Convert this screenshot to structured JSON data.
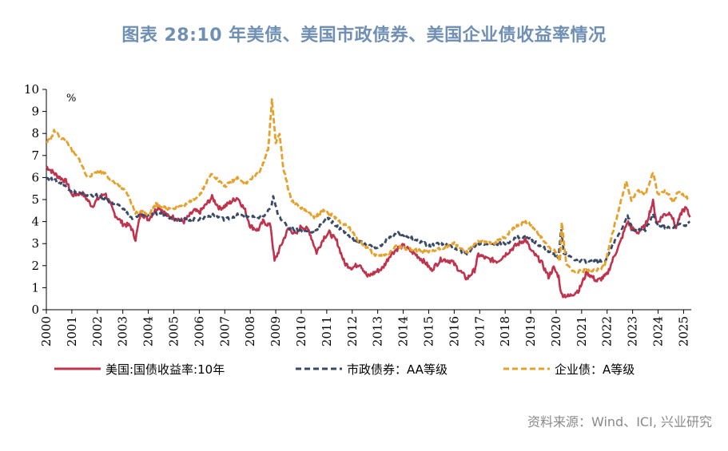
{
  "title": "图表 28:10 年美债、美国市政债券、美国企业债收益率情况",
  "source": "资料来源：Wind、ICI, 兴业研究",
  "chart_data": {
    "type": "line",
    "unit_label": "%",
    "ylim": [
      0,
      10
    ],
    "y_ticks": [
      "0",
      "1",
      "2",
      "3",
      "4",
      "5",
      "6",
      "7",
      "8",
      "9",
      "10"
    ],
    "xlim": [
      2000,
      2025.3
    ],
    "x_ticks": [
      "2000",
      "2001",
      "2002",
      "2003",
      "2004",
      "2005",
      "2006",
      "2007",
      "2008",
      "2009",
      "2010",
      "2011",
      "2012",
      "2013",
      "2014",
      "2015",
      "2016",
      "2017",
      "2018",
      "2019",
      "2020",
      "2021",
      "2022",
      "2023",
      "2024",
      "2025"
    ],
    "grid": false,
    "legend_position": "bottom",
    "series": [
      {
        "name": "美国:国债收益率:10年",
        "color": "#c0334d",
        "dash": "solid",
        "points": [
          [
            2000.0,
            6.5
          ],
          [
            2000.4,
            6.1
          ],
          [
            2000.8,
            5.8
          ],
          [
            2001.0,
            5.2
          ],
          [
            2001.4,
            5.3
          ],
          [
            2001.8,
            4.7
          ],
          [
            2002.0,
            5.0
          ],
          [
            2002.3,
            5.3
          ],
          [
            2002.7,
            4.3
          ],
          [
            2003.0,
            3.9
          ],
          [
            2003.3,
            3.8
          ],
          [
            2003.5,
            3.2
          ],
          [
            2003.7,
            4.4
          ],
          [
            2004.0,
            4.1
          ],
          [
            2004.4,
            4.7
          ],
          [
            2004.8,
            4.2
          ],
          [
            2005.0,
            4.2
          ],
          [
            2005.4,
            4.0
          ],
          [
            2005.8,
            4.5
          ],
          [
            2006.0,
            4.4
          ],
          [
            2006.5,
            5.1
          ],
          [
            2006.8,
            4.6
          ],
          [
            2007.0,
            4.7
          ],
          [
            2007.5,
            5.1
          ],
          [
            2007.8,
            4.5
          ],
          [
            2008.0,
            3.8
          ],
          [
            2008.3,
            3.6
          ],
          [
            2008.5,
            4.0
          ],
          [
            2008.8,
            3.8
          ],
          [
            2008.95,
            2.2
          ],
          [
            2009.2,
            2.9
          ],
          [
            2009.5,
            3.7
          ],
          [
            2009.8,
            3.4
          ],
          [
            2010.0,
            3.8
          ],
          [
            2010.3,
            3.6
          ],
          [
            2010.6,
            2.6
          ],
          [
            2010.9,
            3.3
          ],
          [
            2011.1,
            3.5
          ],
          [
            2011.4,
            3.1
          ],
          [
            2011.7,
            2.1
          ],
          [
            2012.0,
            1.9
          ],
          [
            2012.3,
            2.1
          ],
          [
            2012.6,
            1.5
          ],
          [
            2012.9,
            1.7
          ],
          [
            2013.2,
            1.9
          ],
          [
            2013.5,
            2.5
          ],
          [
            2013.8,
            2.8
          ],
          [
            2014.0,
            2.9
          ],
          [
            2014.5,
            2.5
          ],
          [
            2014.9,
            2.1
          ],
          [
            2015.1,
            1.8
          ],
          [
            2015.5,
            2.3
          ],
          [
            2015.9,
            2.2
          ],
          [
            2016.2,
            1.8
          ],
          [
            2016.5,
            1.4
          ],
          [
            2016.8,
            1.8
          ],
          [
            2016.95,
            2.5
          ],
          [
            2017.3,
            2.3
          ],
          [
            2017.7,
            2.2
          ],
          [
            2018.0,
            2.5
          ],
          [
            2018.4,
            2.9
          ],
          [
            2018.8,
            3.2
          ],
          [
            2019.0,
            2.7
          ],
          [
            2019.4,
            2.2
          ],
          [
            2019.7,
            1.5
          ],
          [
            2019.9,
            1.9
          ],
          [
            2020.1,
            1.5
          ],
          [
            2020.2,
            0.7
          ],
          [
            2020.5,
            0.6
          ],
          [
            2020.9,
            0.9
          ],
          [
            2021.2,
            1.7
          ],
          [
            2021.6,
            1.3
          ],
          [
            2021.9,
            1.5
          ],
          [
            2022.0,
            1.6
          ],
          [
            2022.3,
            2.5
          ],
          [
            2022.5,
            3.0
          ],
          [
            2022.8,
            4.0
          ],
          [
            2022.95,
            3.7
          ],
          [
            2023.2,
            3.5
          ],
          [
            2023.5,
            3.8
          ],
          [
            2023.8,
            4.9
          ],
          [
            2023.95,
            3.9
          ],
          [
            2024.2,
            4.3
          ],
          [
            2024.5,
            4.4
          ],
          [
            2024.7,
            3.7
          ],
          [
            2024.95,
            4.5
          ],
          [
            2025.1,
            4.6
          ],
          [
            2025.25,
            4.2
          ]
        ]
      },
      {
        "name": "市政债券：AA等级",
        "color": "#3a4a66",
        "dash": "dashed",
        "points": [
          [
            2000.0,
            6.0
          ],
          [
            2000.5,
            5.8
          ],
          [
            2001.0,
            5.4
          ],
          [
            2001.5,
            5.2
          ],
          [
            2002.0,
            5.2
          ],
          [
            2002.5,
            4.9
          ],
          [
            2003.0,
            4.6
          ],
          [
            2003.4,
            4.1
          ],
          [
            2003.7,
            4.3
          ],
          [
            2004.0,
            4.3
          ],
          [
            2004.5,
            4.4
          ],
          [
            2005.0,
            4.1
          ],
          [
            2005.5,
            4.1
          ],
          [
            2006.0,
            4.1
          ],
          [
            2006.5,
            4.3
          ],
          [
            2007.0,
            4.1
          ],
          [
            2007.5,
            4.3
          ],
          [
            2008.0,
            4.2
          ],
          [
            2008.5,
            4.2
          ],
          [
            2008.8,
            4.6
          ],
          [
            2008.9,
            5.1
          ],
          [
            2009.1,
            4.3
          ],
          [
            2009.5,
            3.7
          ],
          [
            2010.0,
            3.6
          ],
          [
            2010.5,
            3.5
          ],
          [
            2011.0,
            4.2
          ],
          [
            2011.5,
            3.7
          ],
          [
            2012.0,
            3.2
          ],
          [
            2012.5,
            3.0
          ],
          [
            2013.0,
            2.8
          ],
          [
            2013.5,
            3.3
          ],
          [
            2013.8,
            3.5
          ],
          [
            2014.0,
            3.4
          ],
          [
            2014.5,
            3.2
          ],
          [
            2015.0,
            2.9
          ],
          [
            2015.5,
            3.0
          ],
          [
            2016.0,
            2.8
          ],
          [
            2016.5,
            2.5
          ],
          [
            2016.9,
            3.0
          ],
          [
            2017.5,
            3.0
          ],
          [
            2018.0,
            3.0
          ],
          [
            2018.5,
            3.3
          ],
          [
            2018.9,
            3.3
          ],
          [
            2019.4,
            2.9
          ],
          [
            2019.8,
            2.6
          ],
          [
            2020.1,
            2.4
          ],
          [
            2020.2,
            3.7
          ],
          [
            2020.3,
            2.6
          ],
          [
            2020.7,
            2.3
          ],
          [
            2021.0,
            2.2
          ],
          [
            2021.5,
            2.2
          ],
          [
            2021.9,
            2.2
          ],
          [
            2022.2,
            2.9
          ],
          [
            2022.5,
            3.5
          ],
          [
            2022.8,
            4.3
          ],
          [
            2023.0,
            3.6
          ],
          [
            2023.5,
            3.6
          ],
          [
            2023.8,
            4.3
          ],
          [
            2024.0,
            3.8
          ],
          [
            2024.5,
            3.7
          ],
          [
            2024.8,
            3.9
          ],
          [
            2025.0,
            3.8
          ],
          [
            2025.25,
            4.0
          ]
        ]
      },
      {
        "name": "企业债：A等级",
        "color": "#e6a12c",
        "dash": "dashed",
        "points": [
          [
            2000.0,
            7.6
          ],
          [
            2000.2,
            7.8
          ],
          [
            2000.3,
            8.1
          ],
          [
            2000.5,
            7.9
          ],
          [
            2000.9,
            7.5
          ],
          [
            2001.0,
            7.2
          ],
          [
            2001.3,
            6.8
          ],
          [
            2001.6,
            6.0
          ],
          [
            2002.0,
            6.3
          ],
          [
            2002.3,
            6.2
          ],
          [
            2002.6,
            5.8
          ],
          [
            2002.9,
            5.6
          ],
          [
            2003.2,
            5.2
          ],
          [
            2003.5,
            4.4
          ],
          [
            2003.8,
            4.5
          ],
          [
            2004.0,
            4.3
          ],
          [
            2004.3,
            4.8
          ],
          [
            2004.7,
            4.6
          ],
          [
            2005.0,
            4.6
          ],
          [
            2005.5,
            4.8
          ],
          [
            2006.0,
            5.2
          ],
          [
            2006.5,
            6.2
          ],
          [
            2006.8,
            5.8
          ],
          [
            2007.0,
            5.6
          ],
          [
            2007.5,
            6.0
          ],
          [
            2007.8,
            5.7
          ],
          [
            2008.0,
            5.9
          ],
          [
            2008.4,
            6.3
          ],
          [
            2008.7,
            7.3
          ],
          [
            2008.85,
            9.5
          ],
          [
            2009.0,
            7.6
          ],
          [
            2009.15,
            8.0
          ],
          [
            2009.3,
            6.4
          ],
          [
            2009.6,
            5.0
          ],
          [
            2010.0,
            4.6
          ],
          [
            2010.5,
            4.2
          ],
          [
            2010.9,
            4.5
          ],
          [
            2011.2,
            4.3
          ],
          [
            2011.5,
            4.0
          ],
          [
            2011.9,
            3.7
          ],
          [
            2012.2,
            3.2
          ],
          [
            2012.6,
            2.8
          ],
          [
            2013.0,
            2.4
          ],
          [
            2013.4,
            2.5
          ],
          [
            2013.7,
            2.9
          ],
          [
            2014.0,
            2.8
          ],
          [
            2014.5,
            2.7
          ],
          [
            2015.0,
            2.6
          ],
          [
            2015.5,
            2.8
          ],
          [
            2016.0,
            3.0
          ],
          [
            2016.5,
            2.6
          ],
          [
            2016.9,
            3.1
          ],
          [
            2017.5,
            3.0
          ],
          [
            2018.0,
            3.3
          ],
          [
            2018.4,
            3.8
          ],
          [
            2018.9,
            4.0
          ],
          [
            2019.2,
            3.6
          ],
          [
            2019.6,
            3.0
          ],
          [
            2020.0,
            2.6
          ],
          [
            2020.15,
            2.2
          ],
          [
            2020.22,
            4.0
          ],
          [
            2020.4,
            2.0
          ],
          [
            2020.8,
            1.7
          ],
          [
            2021.2,
            1.8
          ],
          [
            2021.6,
            1.8
          ],
          [
            2021.9,
            2.0
          ],
          [
            2022.1,
            3.0
          ],
          [
            2022.4,
            4.3
          ],
          [
            2022.75,
            5.8
          ],
          [
            2022.95,
            5.0
          ],
          [
            2023.2,
            5.4
          ],
          [
            2023.5,
            5.2
          ],
          [
            2023.8,
            6.2
          ],
          [
            2024.0,
            5.2
          ],
          [
            2024.3,
            5.4
          ],
          [
            2024.6,
            4.9
          ],
          [
            2024.8,
            5.4
          ],
          [
            2025.0,
            5.2
          ],
          [
            2025.25,
            5.0
          ]
        ]
      }
    ]
  }
}
